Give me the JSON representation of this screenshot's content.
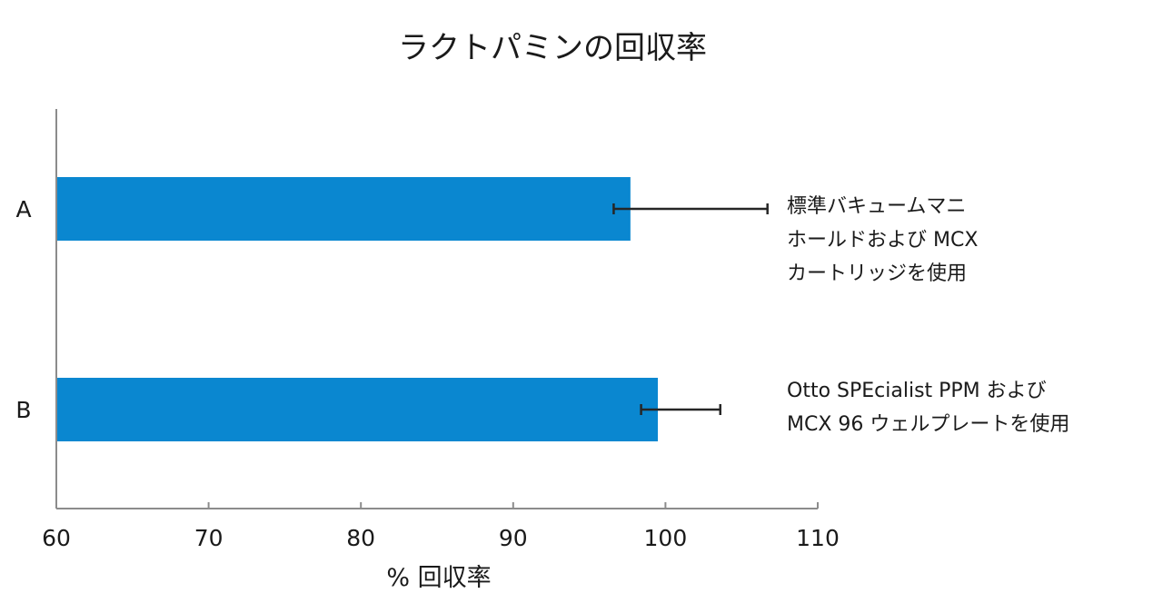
{
  "chart_data": {
    "type": "bar",
    "orientation": "horizontal",
    "title": "ラクトパミンの回収率",
    "xlabel": "% 回収率",
    "ylabel": "",
    "xlim": [
      60,
      110
    ],
    "xticks": [
      "60",
      "70",
      "80",
      "90",
      "100",
      "110"
    ],
    "grid": false,
    "categories": [
      "A",
      "B"
    ],
    "values": [
      97.7,
      99.5
    ],
    "error_bars": [
      [
        96.6,
        106.7
      ],
      [
        98.4,
        103.6
      ]
    ],
    "annotations": [
      [
        "標準バキュームマニ",
        "ホールドおよび MCX",
        "カートリッジを使用"
      ],
      [
        "Otto SPEcialist PPM および",
        "MCX 96 ウェルプレートを使用"
      ]
    ],
    "bar_color": "#0a87d0",
    "axis_color": "#8c8c8c",
    "error_color": "#262626"
  }
}
